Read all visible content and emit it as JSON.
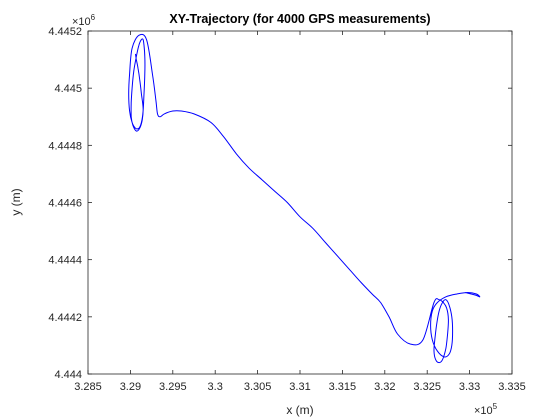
{
  "chart_data": {
    "type": "line",
    "title": "XY-Trajectory (for 4000 GPS measurements)",
    "xlabel": "x (m)",
    "ylabel": "y (m)",
    "xlim": [
      328500,
      333500
    ],
    "ylim": [
      4444000,
      4445200
    ],
    "x_ticks": [
      328500,
      329000,
      329500,
      330000,
      330500,
      331000,
      331500,
      332000,
      332500,
      333000,
      333500
    ],
    "x_tick_labels": [
      "3.285",
      "3.29",
      "3.295",
      "3.3",
      "3.305",
      "3.31",
      "3.315",
      "3.32",
      "3.325",
      "3.33",
      "3.335"
    ],
    "y_ticks": [
      4444000,
      4444200,
      4444400,
      4444600,
      4444800,
      4445000,
      4445200
    ],
    "y_tick_labels": [
      "4.444",
      "4.4442",
      "4.4444",
      "4.4446",
      "4.4448",
      "4.445",
      "4.4452"
    ],
    "x_exponent": {
      "base": "×10",
      "power": "5"
    },
    "y_exponent": {
      "base": "×10",
      "power": "6"
    },
    "grid": false,
    "series": [
      {
        "color": "#0000ff",
        "x": [
          332950,
          333020,
          333080,
          333120,
          333080,
          332980,
          332850,
          332720,
          332620,
          332560,
          332540,
          332560,
          332620,
          332700,
          332760,
          332790,
          332800,
          332790,
          332760,
          332720,
          332680,
          332640,
          332610,
          332590,
          332580,
          332600,
          332640,
          332680,
          332720,
          332740,
          332750,
          332730,
          332690,
          332640,
          332580,
          332450,
          332300,
          332150,
          332050,
          331950,
          331850,
          331720,
          331600,
          331450,
          331300,
          331150,
          331000,
          330850,
          330700,
          330550,
          330400,
          330250,
          330100,
          329950,
          329750,
          329600,
          329500,
          329400,
          329350,
          329320,
          329300,
          329260,
          329190,
          329100,
          329020,
          328990,
          328980,
          328990,
          329020,
          329060,
          329100,
          329130,
          329150,
          329160,
          329170,
          329170,
          329160,
          329150,
          329130,
          329100,
          329070,
          329040,
          329020,
          329010,
          329010,
          329030,
          329070,
          329110,
          329140,
          329150,
          329130,
          329110,
          329090,
          329070,
          329060
        ],
        "y": [
          4444285,
          4444280,
          4444275,
          4444270,
          4444280,
          4444285,
          4444280,
          4444270,
          4444250,
          4444220,
          4444170,
          4444120,
          4444080,
          4444060,
          4444070,
          4444100,
          4444150,
          4444200,
          4444240,
          4444260,
          4444250,
          4444220,
          4444170,
          4444120,
          4444080,
          4444050,
          4444040,
          4444050,
          4444090,
          4444140,
          4444190,
          4444230,
          4444250,
          4444260,
          4444250,
          4444120,
          4444105,
          4444140,
          4444200,
          4444250,
          4444280,
          4444320,
          4444360,
          4444410,
          4444460,
          4444510,
          4444550,
          4444600,
          4444640,
          4444680,
          4444720,
          4444770,
          4444830,
          4444880,
          4444910,
          4444920,
          4444920,
          4444910,
          4444900,
          4444910,
          4444960,
          4445050,
          4445170,
          4445185,
          4445140,
          4445050,
          4444980,
          4444920,
          4444880,
          4444860,
          4444860,
          4444880,
          4444920,
          4444980,
          4445050,
          4445110,
          4445150,
          4445170,
          4445170,
          4445150,
          4445110,
          4445060,
          4445000,
          4444950,
          4444900,
          4444870,
          4444850,
          4444860,
          4444890,
          4444930,
          4444980,
          4445030,
          4445070,
          4445100,
          4445120
        ]
      }
    ]
  }
}
